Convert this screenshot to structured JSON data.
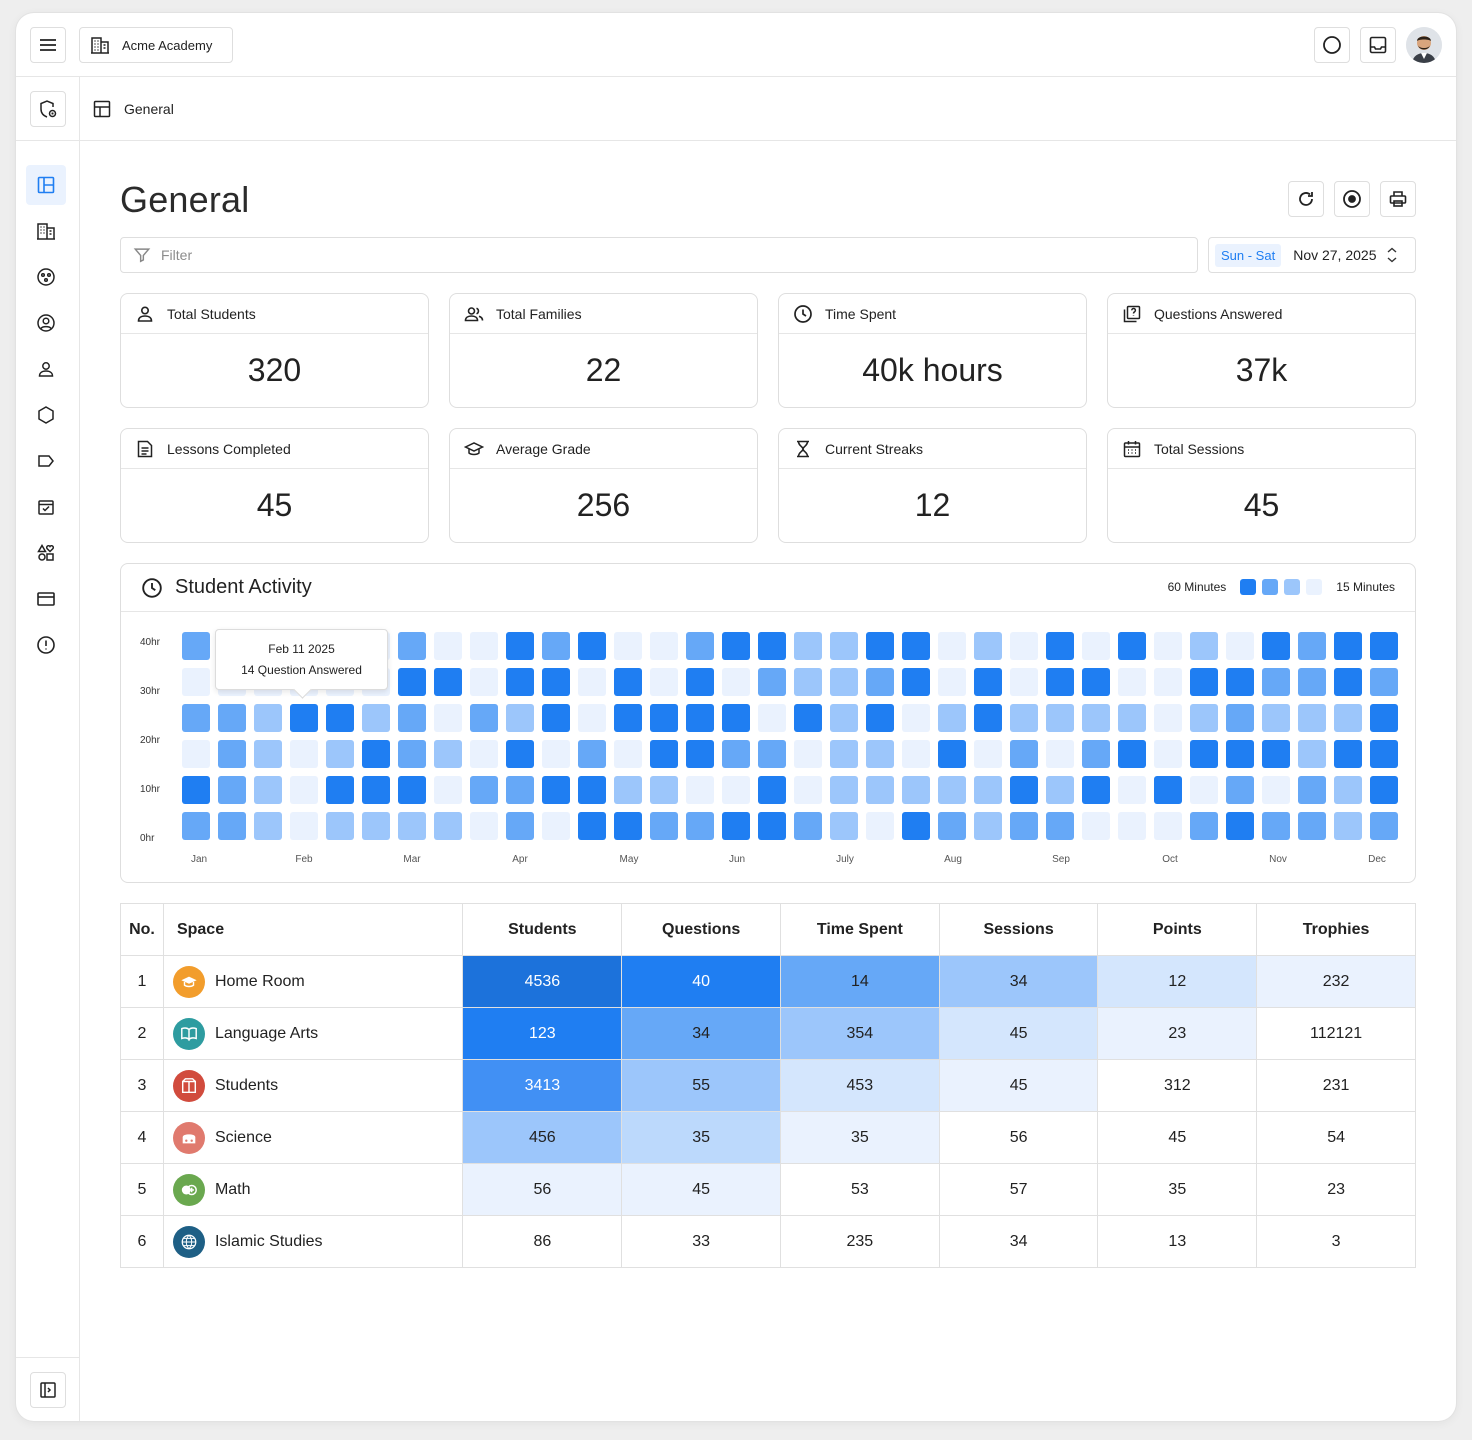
{
  "topbar": {
    "org_name": "Acme Academy",
    "icons": [
      "menu-icon",
      "building-icon",
      "circle-icon",
      "inbox-icon",
      "avatar"
    ]
  },
  "breadcrumb": {
    "label": "General"
  },
  "page": {
    "title": "General",
    "filter_placeholder": "Filter",
    "date_range": {
      "week": "Sun - Sat",
      "date": "Nov 27, 2025"
    }
  },
  "stats": [
    {
      "label": "Total Students",
      "value": "320",
      "icon": "user-icon"
    },
    {
      "label": "Total Families",
      "value": "22",
      "icon": "users-icon"
    },
    {
      "label": "Time Spent",
      "value": "40k hours",
      "icon": "clock-icon"
    },
    {
      "label": "Questions Answered",
      "value": "37k",
      "icon": "question-icon"
    },
    {
      "label": "Lessons Completed",
      "value": "45",
      "icon": "document-icon"
    },
    {
      "label": "Average Grade",
      "value": "256",
      "icon": "graduation-cap-icon"
    },
    {
      "label": "Current Streaks",
      "value": "12",
      "icon": "hourglass-icon"
    },
    {
      "label": "Total Sessions",
      "value": "45",
      "icon": "calendar-icon"
    }
  ],
  "activity": {
    "title": "Student Activity",
    "legend_max": "60 Minutes",
    "legend_min": "15 Minutes",
    "colors": [
      "#eaf2fe",
      "#9cc6fb",
      "#66a8f7",
      "#1f7ef2"
    ],
    "tooltip": {
      "date": "Feb 11 2025",
      "text": "14 Question Answered"
    }
  },
  "chart_data": {
    "type": "heatmap",
    "title": "Student Activity",
    "y_tick_labels": [
      "40hr",
      "30hr",
      "20hr",
      "10hr",
      "0hr"
    ],
    "x_tick_labels": [
      "Jan",
      "Feb",
      "Mar",
      "Apr",
      "May",
      "Jun",
      "July",
      "Aug",
      "Sep",
      "Oct",
      "Nov",
      "Dec"
    ],
    "legend": [
      "60 Minutes",
      "15 Minutes"
    ],
    "columns": 34,
    "rows": 6,
    "levels": [
      [
        2,
        0,
        0,
        0,
        0,
        0,
        2,
        0,
        0,
        3,
        2,
        3,
        0,
        0,
        2,
        3,
        3,
        1,
        1,
        3,
        3,
        0,
        1,
        0,
        3,
        0,
        3,
        0,
        1,
        0,
        3,
        2,
        3,
        3
      ],
      [
        0,
        0,
        0,
        0,
        0,
        0,
        3,
        3,
        0,
        3,
        3,
        0,
        3,
        0,
        3,
        0,
        2,
        1,
        1,
        2,
        3,
        0,
        3,
        0,
        3,
        3,
        0,
        0,
        3,
        3,
        2,
        2,
        3,
        2
      ],
      [
        2,
        2,
        1,
        3,
        3,
        1,
        2,
        0,
        2,
        1,
        3,
        0,
        3,
        3,
        3,
        3,
        0,
        3,
        1,
        3,
        0,
        1,
        3,
        1,
        1,
        1,
        1,
        0,
        1,
        2,
        1,
        1,
        1,
        3
      ],
      [
        0,
        2,
        1,
        0,
        1,
        3,
        2,
        1,
        0,
        3,
        0,
        2,
        0,
        3,
        3,
        2,
        2,
        0,
        1,
        1,
        0,
        3,
        0,
        2,
        0,
        2,
        3,
        0,
        3,
        3,
        3,
        1,
        3,
        3
      ],
      [
        3,
        2,
        1,
        0,
        3,
        3,
        3,
        0,
        2,
        2,
        3,
        3,
        1,
        1,
        0,
        0,
        3,
        0,
        1,
        1,
        1,
        1,
        1,
        3,
        1,
        3,
        0,
        3,
        0,
        2,
        0,
        2,
        1,
        3
      ],
      [
        2,
        2,
        1,
        0,
        1,
        1,
        1,
        1,
        0,
        2,
        0,
        3,
        3,
        2,
        2,
        3,
        3,
        2,
        1,
        0,
        3,
        2,
        1,
        2,
        2,
        0,
        0,
        0,
        2,
        3,
        2,
        2,
        1,
        2
      ]
    ]
  },
  "table": {
    "headers": [
      "No.",
      "Space",
      "Students",
      "Questions",
      "Time Spent",
      "Sessions",
      "Points",
      "Trophies"
    ],
    "rows": [
      {
        "no": "1",
        "space": "Home Room",
        "icon": "graduation-cap-icon",
        "icon_color": "#f29d2c",
        "values": [
          "4536",
          "40",
          "14",
          "34",
          "12",
          "232"
        ]
      },
      {
        "no": "2",
        "space": "Language Arts",
        "icon": "book-icon",
        "icon_color": "#2e9ca0",
        "values": [
          "123",
          "34",
          "354",
          "45",
          "23",
          "112121"
        ]
      },
      {
        "no": "3",
        "space": "Students",
        "icon": "box-icon",
        "icon_color": "#d14b3d",
        "values": [
          "3413",
          "55",
          "453",
          "45",
          "312",
          "231"
        ]
      },
      {
        "no": "4",
        "space": "Science",
        "icon": "flask-icon",
        "icon_color": "#e07a6e",
        "values": [
          "456",
          "35",
          "35",
          "56",
          "45",
          "54"
        ]
      },
      {
        "no": "5",
        "space": "Math",
        "icon": "plus-icon",
        "icon_color": "#6aa84f",
        "values": [
          "56",
          "45",
          "53",
          "57",
          "35",
          "23"
        ]
      },
      {
        "no": "6",
        "space": "Islamic Studies",
        "icon": "globe-icon",
        "icon_color": "#1e5f85",
        "values": [
          "86",
          "33",
          "235",
          "34",
          "13",
          "3"
        ]
      }
    ],
    "cell_colors": [
      [
        "#1c72db",
        "#1f7ef2",
        "#66a8f7",
        "#9cc6fb",
        "#d4e6fd",
        "#eaf2fe"
      ],
      [
        "#1f7ef2",
        "#66a8f7",
        "#9cc6fb",
        "#d4e6fd",
        "#eaf2fe",
        "#ffffff"
      ],
      [
        "#4190f4",
        "#9cc6fb",
        "#d4e6fd",
        "#eaf2fe",
        "#ffffff",
        "#ffffff"
      ],
      [
        "#9cc6fb",
        "#bcd9fc",
        "#eaf2fe",
        "#ffffff",
        "#ffffff",
        "#ffffff"
      ],
      [
        "#eaf2fe",
        "#eaf2fe",
        "#ffffff",
        "#ffffff",
        "#ffffff",
        "#ffffff"
      ],
      [
        "#ffffff",
        "#ffffff",
        "#ffffff",
        "#ffffff",
        "#ffffff",
        "#ffffff"
      ]
    ]
  }
}
